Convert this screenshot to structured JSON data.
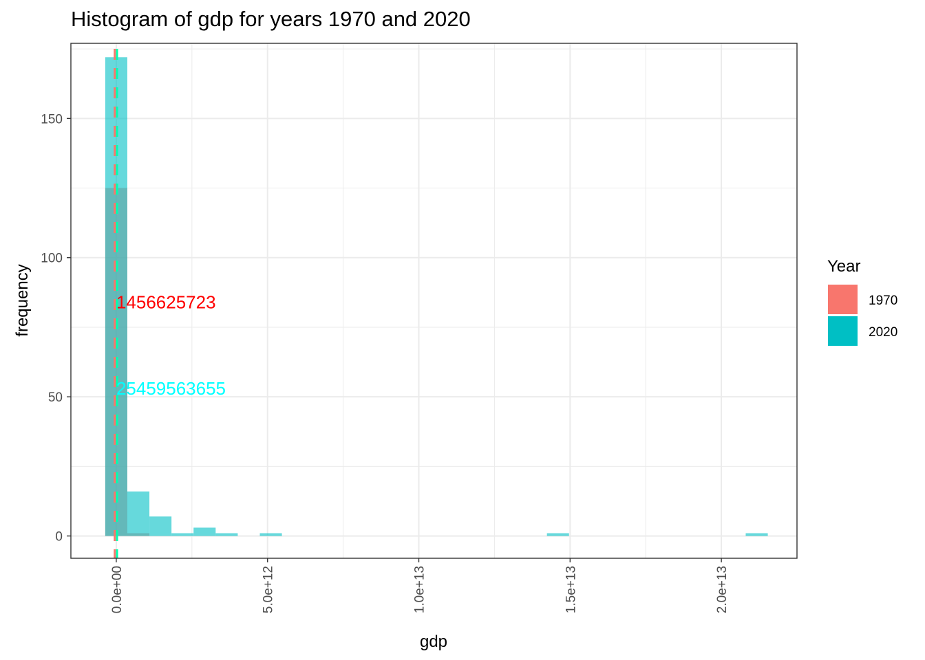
{
  "chart_data": {
    "type": "bar",
    "title": "Histogram of gdp for years 1970 and 2020",
    "xlabel": "gdp",
    "ylabel": "frequency",
    "x_ticks": [
      {
        "value": 0,
        "label": "0.0e+00"
      },
      {
        "value": 5000000000000,
        "label": "5.0e+12"
      },
      {
        "value": 10000000000000,
        "label": "1.0e+13"
      },
      {
        "value": 15000000000000,
        "label": "1.5e+13"
      },
      {
        "value": 20000000000000,
        "label": "2.0e+13"
      }
    ],
    "y_ticks": [
      {
        "value": 0,
        "label": "0"
      },
      {
        "value": 50,
        "label": "50"
      },
      {
        "value": 100,
        "label": "100"
      },
      {
        "value": 150,
        "label": "150"
      }
    ],
    "xlim": [
      -1500000000000,
      22500000000000
    ],
    "ylim": [
      -8,
      177
    ],
    "grid": true,
    "legend": {
      "title": "Year",
      "position": "right",
      "entries": [
        {
          "label": "1970",
          "color": "#F8766D"
        },
        {
          "label": "2020",
          "color": "#00BFC4"
        }
      ]
    },
    "bin_width": 730000000000,
    "series": [
      {
        "name": "1970",
        "color": "#F8766D",
        "bins": [
          {
            "center": 0,
            "count": 125
          },
          {
            "center": 730000000000,
            "count": 1
          }
        ]
      },
      {
        "name": "2020",
        "color": "#00BFC4",
        "bins": [
          {
            "center": 0,
            "count": 172
          },
          {
            "center": 730000000000,
            "count": 16
          },
          {
            "center": 1460000000000,
            "count": 7
          },
          {
            "center": 2190000000000,
            "count": 1
          },
          {
            "center": 2920000000000,
            "count": 3
          },
          {
            "center": 3650000000000,
            "count": 1
          },
          {
            "center": 5110000000000,
            "count": 1
          },
          {
            "center": 14600000000000,
            "count": 1
          },
          {
            "center": 21170000000000,
            "count": 1
          }
        ]
      }
    ],
    "vlines": [
      {
        "series": "1970",
        "value": -50000000000,
        "color": "#F8766D",
        "style": "dashed"
      },
      {
        "series": "2020",
        "value": 25459563655,
        "color": "#00FFB0",
        "style": "dashed"
      }
    ],
    "annotations": [
      {
        "text": "1456625723",
        "color": "#FF0000",
        "x": 0,
        "y": 84
      },
      {
        "text": "25459563655",
        "color": "#00FFFF",
        "x": 0,
        "y": 53
      }
    ]
  }
}
